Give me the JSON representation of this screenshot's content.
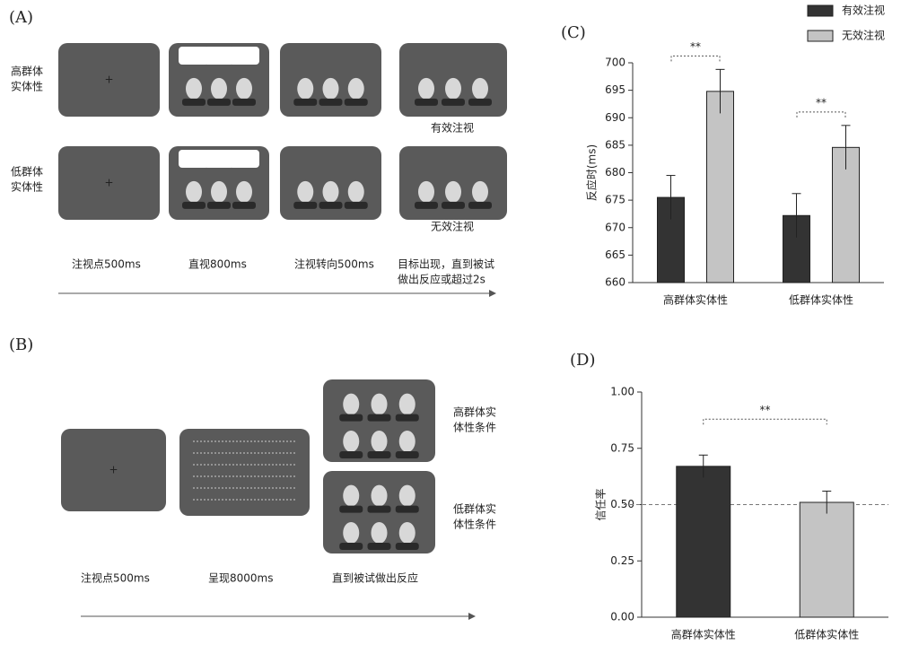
{
  "panel_a": {
    "label": "(A)",
    "rows": [
      [
        "高群体",
        "实体性"
      ],
      [
        "低群体",
        "实体性"
      ]
    ],
    "outcomes": [
      "有效注视",
      "无效注视"
    ],
    "steps": [
      [
        "注视点500ms"
      ],
      [
        "直视800ms"
      ],
      [
        "注视转向500ms"
      ],
      [
        "目标出现，直到被试",
        "做出反应或超过2s"
      ]
    ]
  },
  "panel_b": {
    "label": "(B)",
    "steps": [
      "注视点500ms",
      "呈现8000ms",
      "直到被试做出反应"
    ],
    "conditions": [
      [
        "高群体实",
        "体性条件"
      ],
      [
        "低群体实",
        "体性条件"
      ]
    ]
  },
  "chart_data": [
    {
      "type": "bar",
      "panel": "(C)",
      "y_label": "反应时(ms)",
      "categories": [
        "高群体实体性",
        "低群体实体性"
      ],
      "series": [
        {
          "name": "有效注视",
          "color": "#333333",
          "values": [
            675.5,
            672.2
          ],
          "errors": [
            4,
            4
          ]
        },
        {
          "name": "无效注视",
          "color": "#c4c4c4",
          "values": [
            694.8,
            684.6
          ],
          "errors": [
            4,
            4
          ]
        }
      ],
      "ylim": [
        660,
        700
      ],
      "yticks": [
        660,
        665,
        670,
        675,
        680,
        685,
        690,
        695,
        700
      ],
      "annotations": [
        "**",
        "**"
      ],
      "legend": "top-right"
    },
    {
      "type": "bar",
      "panel": "(D)",
      "y_label": "信任率",
      "categories": [
        "高群体实体性",
        "低群体实体性"
      ],
      "values": [
        0.67,
        0.51
      ],
      "errors": [
        0.05,
        0.05
      ],
      "colors": [
        "#333333",
        "#c4c4c4"
      ],
      "ylim": [
        0,
        1
      ],
      "yticks": [
        {
          "value": 0,
          "label": "0.00"
        },
        {
          "value": 0.25,
          "label": "0.25"
        },
        {
          "value": 0.5,
          "label": "0.50"
        },
        {
          "value": 0.75,
          "label": "0.75"
        },
        {
          "value": 1,
          "label": "1.00"
        }
      ],
      "reference_line": 0.5,
      "annotations": [
        "**"
      ]
    }
  ]
}
